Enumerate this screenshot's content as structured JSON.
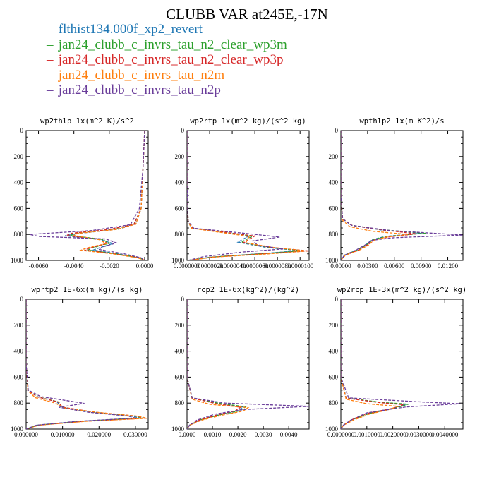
{
  "title": "CLUBB VAR at245E,-17N",
  "legend": [
    {
      "name": "flthist134.000f_xp2_revert",
      "color": "#1f77b4"
    },
    {
      "name": "jan24_clubb_c_invrs_tau_n2_clear_wp3m",
      "color": "#2ca02c"
    },
    {
      "name": "jan24_clubb_c_invrs_tau_n2_clear_wp3p",
      "color": "#d62728"
    },
    {
      "name": "jan24_clubb_c_invrs_tau_n2m",
      "color": "#ff7f0e"
    },
    {
      "name": "jan24_clubb_c_invrs_tau_n2p",
      "color": "#6a3d9a"
    }
  ],
  "chart_data": [
    {
      "type": "line",
      "title": "wp2thlp  1x(m^2 K)/s^2",
      "xlim": [
        -0.0067,
        0.0002
      ],
      "ylim": [
        1000,
        0
      ],
      "xticks": [
        "-0.0060",
        "-0.0040",
        "-0.0020",
        "0.0000"
      ],
      "xtick_values": [
        -0.006,
        -0.004,
        -0.002,
        0
      ],
      "yticks": [
        0,
        200,
        400,
        600,
        800,
        1000
      ],
      "series": [
        {
          "color": "#1f77b4",
          "x": [
            0.0,
            -0.0001,
            -0.0002,
            -0.0005,
            -0.0015,
            -0.0036,
            -0.0045,
            -0.0025,
            -0.0018,
            -0.0026,
            -0.0029,
            -0.0015,
            -0.0003,
            0.0
          ],
          "y": [
            0,
            300,
            600,
            720,
            760,
            790,
            810,
            840,
            870,
            905,
            920,
            950,
            980,
            1000
          ]
        },
        {
          "color": "#2ca02c",
          "x": [
            0.0,
            -0.0001,
            -0.0002,
            -0.0006,
            -0.0018,
            -0.004,
            -0.0042,
            -0.0024,
            -0.002,
            -0.003,
            -0.0032,
            -0.0016,
            -0.0003,
            0.0
          ],
          "y": [
            0,
            300,
            600,
            720,
            760,
            790,
            808,
            838,
            868,
            905,
            920,
            950,
            980,
            1000
          ]
        },
        {
          "color": "#d62728",
          "x": [
            0.0,
            -0.0001,
            -0.0002,
            -0.0006,
            -0.002,
            -0.0042,
            -0.0044,
            -0.0026,
            -0.0021,
            -0.0031,
            -0.0034,
            -0.0017,
            -0.0003,
            0.0
          ],
          "y": [
            0,
            300,
            600,
            722,
            762,
            792,
            808,
            838,
            868,
            905,
            920,
            950,
            980,
            1000
          ]
        },
        {
          "color": "#ff7f0e",
          "x": [
            0.0,
            -0.0001,
            -0.0002,
            -0.0005,
            -0.0016,
            -0.0038,
            -0.004,
            -0.0025,
            -0.0022,
            -0.0033,
            -0.0036,
            -0.0018,
            -0.0004,
            0.0
          ],
          "y": [
            0,
            300,
            600,
            722,
            762,
            792,
            808,
            842,
            872,
            905,
            922,
            950,
            980,
            1000
          ]
        },
        {
          "color": "#6a3d9a",
          "x": [
            0.0,
            -0.0001,
            -0.0003,
            -0.0008,
            -0.003,
            -0.0065,
            -0.006,
            -0.0022,
            -0.0016,
            -0.0024,
            -0.0026,
            -0.0012,
            -0.0002,
            0.0
          ],
          "y": [
            0,
            300,
            600,
            725,
            770,
            800,
            815,
            835,
            865,
            898,
            915,
            948,
            980,
            1000
          ]
        }
      ]
    },
    {
      "type": "line",
      "title": "wp2rtp  1x(m^2 kg)/(s^2 kg)",
      "xlim": [
        0,
        1.08e-05
      ],
      "ylim": [
        1000,
        0
      ],
      "xticks": [
        "0.0000000",
        "0.0000020",
        "0.0000040",
        "0.0000060",
        "0.0000080",
        "0.0000100"
      ],
      "xtick_values": [
        0,
        2e-06,
        4e-06,
        6e-06,
        8e-06,
        1e-05
      ],
      "yticks": [
        0,
        200,
        400,
        600,
        800,
        1000
      ],
      "series": [
        {
          "color": "#1f77b4",
          "x": [
            0,
            0,
            1e-07,
            4e-07,
            3e-06,
            5.5e-06,
            4.5e-06,
            7e-06,
            1e-05,
            7e-06,
            2e-06,
            2e-07
          ],
          "y": [
            0,
            400,
            700,
            750,
            780,
            810,
            860,
            900,
            925,
            945,
            975,
            1000
          ]
        },
        {
          "color": "#2ca02c",
          "x": [
            0,
            0,
            1e-07,
            4e-07,
            3.2e-06,
            5.8e-06,
            4.8e-06,
            7.2e-06,
            1.03e-05,
            7.2e-06,
            2.1e-06,
            2e-07
          ],
          "y": [
            0,
            400,
            700,
            752,
            782,
            812,
            860,
            900,
            925,
            945,
            975,
            1000
          ]
        },
        {
          "color": "#d62728",
          "x": [
            0,
            0,
            1e-07,
            5e-07,
            3.3e-06,
            6e-06,
            5e-06,
            7.5e-06,
            1.08e-05,
            7.5e-06,
            2.2e-06,
            2e-07
          ],
          "y": [
            0,
            400,
            700,
            752,
            782,
            812,
            862,
            900,
            927,
            945,
            975,
            1000
          ]
        },
        {
          "color": "#ff7f0e",
          "x": [
            0,
            0,
            1e-07,
            4e-07,
            3e-06,
            5.5e-06,
            5.2e-06,
            7.8e-06,
            1.06e-05,
            7.8e-06,
            2.3e-06,
            2e-07
          ],
          "y": [
            0,
            400,
            700,
            752,
            785,
            815,
            865,
            902,
            927,
            947,
            975,
            1000
          ]
        },
        {
          "color": "#6a3d9a",
          "x": [
            0,
            0,
            1e-07,
            6e-07,
            5e-06,
            8.2e-06,
            5.8e-06,
            6.3e-06,
            8.5e-06,
            5e-06,
            1.5e-06,
            1e-07
          ],
          "y": [
            0,
            400,
            700,
            752,
            790,
            820,
            850,
            885,
            912,
            935,
            970,
            1000
          ]
        }
      ]
    },
    {
      "type": "line",
      "title": "wpthlp2  1x(m K^2)/s",
      "xlim": [
        0,
        0.0137
      ],
      "ylim": [
        1000,
        0
      ],
      "xticks": [
        "0.00000",
        "0.00300",
        "0.00600",
        "0.00900",
        "0.01200"
      ],
      "xtick_values": [
        0,
        0.003,
        0.006,
        0.009,
        0.012
      ],
      "yticks": [
        0,
        200,
        400,
        600,
        800,
        1000
      ],
      "series": [
        {
          "color": "#1f77b4",
          "x": [
            0,
            0,
            0.0002,
            0.0012,
            0.0045,
            0.009,
            0.005,
            0.0035,
            0.0028,
            0.0018,
            0.0004,
            0
          ],
          "y": [
            0,
            500,
            680,
            730,
            765,
            790,
            815,
            840,
            880,
            920,
            960,
            1000
          ]
        },
        {
          "color": "#2ca02c",
          "x": [
            0,
            0,
            0.0002,
            0.0012,
            0.0048,
            0.0095,
            0.0052,
            0.0036,
            0.0029,
            0.0019,
            0.0004,
            0
          ],
          "y": [
            0,
            500,
            680,
            730,
            765,
            790,
            815,
            840,
            880,
            920,
            960,
            1000
          ]
        },
        {
          "color": "#d62728",
          "x": [
            0,
            0,
            0.0002,
            0.0013,
            0.005,
            0.0085,
            0.0055,
            0.0038,
            0.003,
            0.002,
            0.0005,
            0
          ],
          "y": [
            0,
            500,
            680,
            732,
            768,
            795,
            818,
            842,
            880,
            920,
            960,
            1000
          ]
        },
        {
          "color": "#ff7f0e",
          "x": [
            0,
            0,
            0.0002,
            0.001,
            0.0035,
            0.0075,
            0.005,
            0.0037,
            0.0031,
            0.0021,
            0.0005,
            0
          ],
          "y": [
            0,
            500,
            690,
            740,
            775,
            800,
            822,
            845,
            882,
            920,
            960,
            1000
          ]
        },
        {
          "color": "#6a3d9a",
          "x": [
            0,
            0,
            0.0002,
            0.0012,
            0.0055,
            0.0137,
            0.006,
            0.0035,
            0.0027,
            0.0017,
            0.0004,
            0
          ],
          "y": [
            0,
            500,
            680,
            730,
            770,
            805,
            825,
            845,
            882,
            920,
            960,
            1000
          ]
        }
      ]
    },
    {
      "type": "line",
      "title": "wprtp2  1E-6x(m kg)/(s kg)",
      "xlim": [
        0,
        0.0335
      ],
      "ylim": [
        1000,
        0
      ],
      "xticks": [
        "0.000000",
        "0.010000",
        "0.020000",
        "0.030000"
      ],
      "xtick_values": [
        0,
        0.01,
        0.02,
        0.03
      ],
      "yticks": [
        0,
        200,
        400,
        600,
        800,
        1000
      ],
      "series": [
        {
          "color": "#1f77b4",
          "x": [
            0,
            0,
            0.0005,
            0.003,
            0.0085,
            0.0095,
            0.018,
            0.029,
            0.031,
            0.015,
            0.003,
            0
          ],
          "y": [
            0,
            500,
            700,
            750,
            790,
            830,
            870,
            900,
            915,
            940,
            970,
            1000
          ]
        },
        {
          "color": "#2ca02c",
          "x": [
            0,
            0,
            0.0005,
            0.0032,
            0.009,
            0.0098,
            0.0185,
            0.03,
            0.032,
            0.0155,
            0.0032,
            0
          ],
          "y": [
            0,
            500,
            700,
            752,
            792,
            832,
            870,
            900,
            915,
            940,
            970,
            1000
          ]
        },
        {
          "color": "#d62728",
          "x": [
            0,
            0,
            0.0005,
            0.003,
            0.0088,
            0.01,
            0.019,
            0.0305,
            0.0325,
            0.016,
            0.0033,
            0
          ],
          "y": [
            0,
            500,
            700,
            752,
            792,
            832,
            870,
            900,
            917,
            940,
            970,
            1000
          ]
        },
        {
          "color": "#ff7f0e",
          "x": [
            0,
            0,
            0.0005,
            0.0025,
            0.008,
            0.0105,
            0.0195,
            0.031,
            0.0332,
            0.0165,
            0.0035,
            0
          ],
          "y": [
            0,
            500,
            705,
            758,
            800,
            838,
            872,
            902,
            917,
            940,
            970,
            1000
          ]
        },
        {
          "color": "#6a3d9a",
          "x": [
            0,
            0,
            0.0006,
            0.004,
            0.016,
            0.009,
            0.017,
            0.028,
            0.03,
            0.014,
            0.0028,
            0
          ],
          "y": [
            0,
            500,
            700,
            750,
            802,
            832,
            870,
            900,
            915,
            940,
            970,
            1000
          ]
        }
      ]
    },
    {
      "type": "line",
      "title": "rcp2  1E-6x(kg^2)/(kg^2)",
      "xlim": [
        0,
        0.0048
      ],
      "ylim": [
        1000,
        0
      ],
      "xticks": [
        "0.0000",
        "0.0010",
        "0.0020",
        "0.0030",
        "0.0040"
      ],
      "xtick_values": [
        0,
        0.001,
        0.002,
        0.003,
        0.004
      ],
      "yticks": [
        0,
        200,
        400,
        600,
        800,
        1000
      ],
      "series": [
        {
          "color": "#1f77b4",
          "x": [
            0,
            0,
            0.0002,
            0.0012,
            0.0022,
            0.002,
            0.0012,
            0.0005,
            0.0001,
            0
          ],
          "y": [
            0,
            600,
            760,
            800,
            830,
            860,
            890,
            930,
            970,
            1000
          ]
        },
        {
          "color": "#2ca02c",
          "x": [
            0,
            0,
            0.0002,
            0.0012,
            0.0023,
            0.0021,
            0.0013,
            0.0005,
            0.0001,
            0
          ],
          "y": [
            0,
            600,
            760,
            800,
            828,
            858,
            890,
            930,
            970,
            1000
          ]
        },
        {
          "color": "#d62728",
          "x": [
            0,
            0,
            0.0002,
            0.0011,
            0.0021,
            0.0019,
            0.0012,
            0.0005,
            0.0001,
            0
          ],
          "y": [
            0,
            600,
            762,
            802,
            832,
            860,
            890,
            930,
            970,
            1000
          ]
        },
        {
          "color": "#ff7f0e",
          "x": [
            0,
            0,
            0.0002,
            0.0009,
            0.0024,
            0.0022,
            0.0014,
            0.0006,
            0.0001,
            0
          ],
          "y": [
            0,
            600,
            770,
            810,
            835,
            862,
            892,
            930,
            970,
            1000
          ]
        },
        {
          "color": "#6a3d9a",
          "x": [
            0,
            0,
            0.0002,
            0.0015,
            0.0048,
            0.0022,
            0.0011,
            0.0004,
            0.0001,
            0
          ],
          "y": [
            0,
            600,
            760,
            800,
            825,
            850,
            885,
            930,
            970,
            1000
          ]
        }
      ]
    },
    {
      "type": "line",
      "title": "wp2rcp  1E-3x(m^2 kg)/(s^2 kg)",
      "xlim": [
        0,
        0.0047
      ],
      "ylim": [
        1000,
        0
      ],
      "xticks": [
        "0.0000000",
        "0.0010000",
        "0.0020000",
        "0.0030000",
        "0.0040000"
      ],
      "xtick_values": [
        0,
        0.001,
        0.002,
        0.003,
        0.004
      ],
      "yticks": [
        0,
        200,
        400,
        600,
        800,
        1000
      ],
      "series": [
        {
          "color": "#1f77b4",
          "x": [
            0,
            0,
            0.0002,
            0.0015,
            0.0025,
            0.002,
            0.001,
            0.0004,
            0.0001,
            0
          ],
          "y": [
            0,
            600,
            760,
            795,
            810,
            840,
            880,
            930,
            970,
            1000
          ]
        },
        {
          "color": "#2ca02c",
          "x": [
            0,
            0,
            0.0002,
            0.0016,
            0.0026,
            0.0021,
            0.0011,
            0.0004,
            0.0001,
            0
          ],
          "y": [
            0,
            600,
            760,
            795,
            808,
            838,
            880,
            930,
            970,
            1000
          ]
        },
        {
          "color": "#d62728",
          "x": [
            0,
            0,
            0.0002,
            0.0015,
            0.0024,
            0.002,
            0.001,
            0.0004,
            0.0001,
            0
          ],
          "y": [
            0,
            600,
            762,
            797,
            812,
            840,
            880,
            930,
            970,
            1000
          ]
        },
        {
          "color": "#ff7f0e",
          "x": [
            0,
            0,
            0.0002,
            0.001,
            0.0022,
            0.0018,
            0.0011,
            0.0005,
            0.0001,
            0
          ],
          "y": [
            0,
            600,
            770,
            805,
            825,
            852,
            885,
            930,
            970,
            1000
          ]
        },
        {
          "color": "#6a3d9a",
          "x": [
            0,
            0,
            0.0003,
            0.003,
            0.0046,
            0.0025,
            0.001,
            0.0004,
            0.0001,
            0
          ],
          "y": [
            0,
            600,
            760,
            790,
            805,
            830,
            875,
            930,
            970,
            1000
          ]
        }
      ]
    }
  ]
}
